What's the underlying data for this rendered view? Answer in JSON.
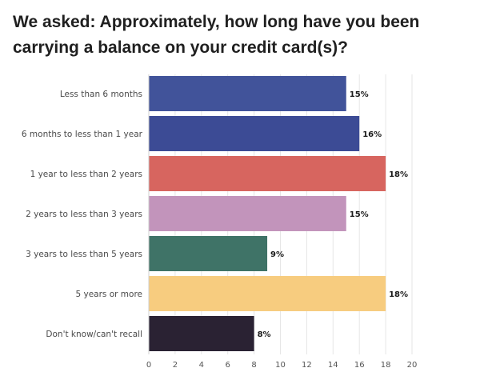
{
  "chart_data": {
    "type": "bar",
    "orientation": "horizontal",
    "title": "We asked: Approximately, how long have you been carrying a balance on your credit card(s)?",
    "categories": [
      "Less than 6 months",
      "6 months to less than 1 year",
      "1 year to less than 2 years",
      "2 years to less than 3 years",
      "3 years to less than 5 years",
      "5 years or more",
      "Don't know/can't recall"
    ],
    "values": [
      15,
      16,
      18,
      15,
      9,
      18,
      8
    ],
    "value_labels": [
      "15%",
      "16%",
      "18%",
      "15%",
      "9%",
      "18%",
      "8%"
    ],
    "colors": [
      "#41539a",
      "#3c4b95",
      "#d7655f",
      "#c294bb",
      "#3f7367",
      "#f7cc7f",
      "#2a2233"
    ],
    "xlim": [
      0,
      20
    ],
    "xticks": [
      "0",
      "2",
      "4",
      "6",
      "8",
      "10",
      "12",
      "14",
      "16",
      "18",
      "20"
    ],
    "grid": true,
    "legend": "none"
  }
}
